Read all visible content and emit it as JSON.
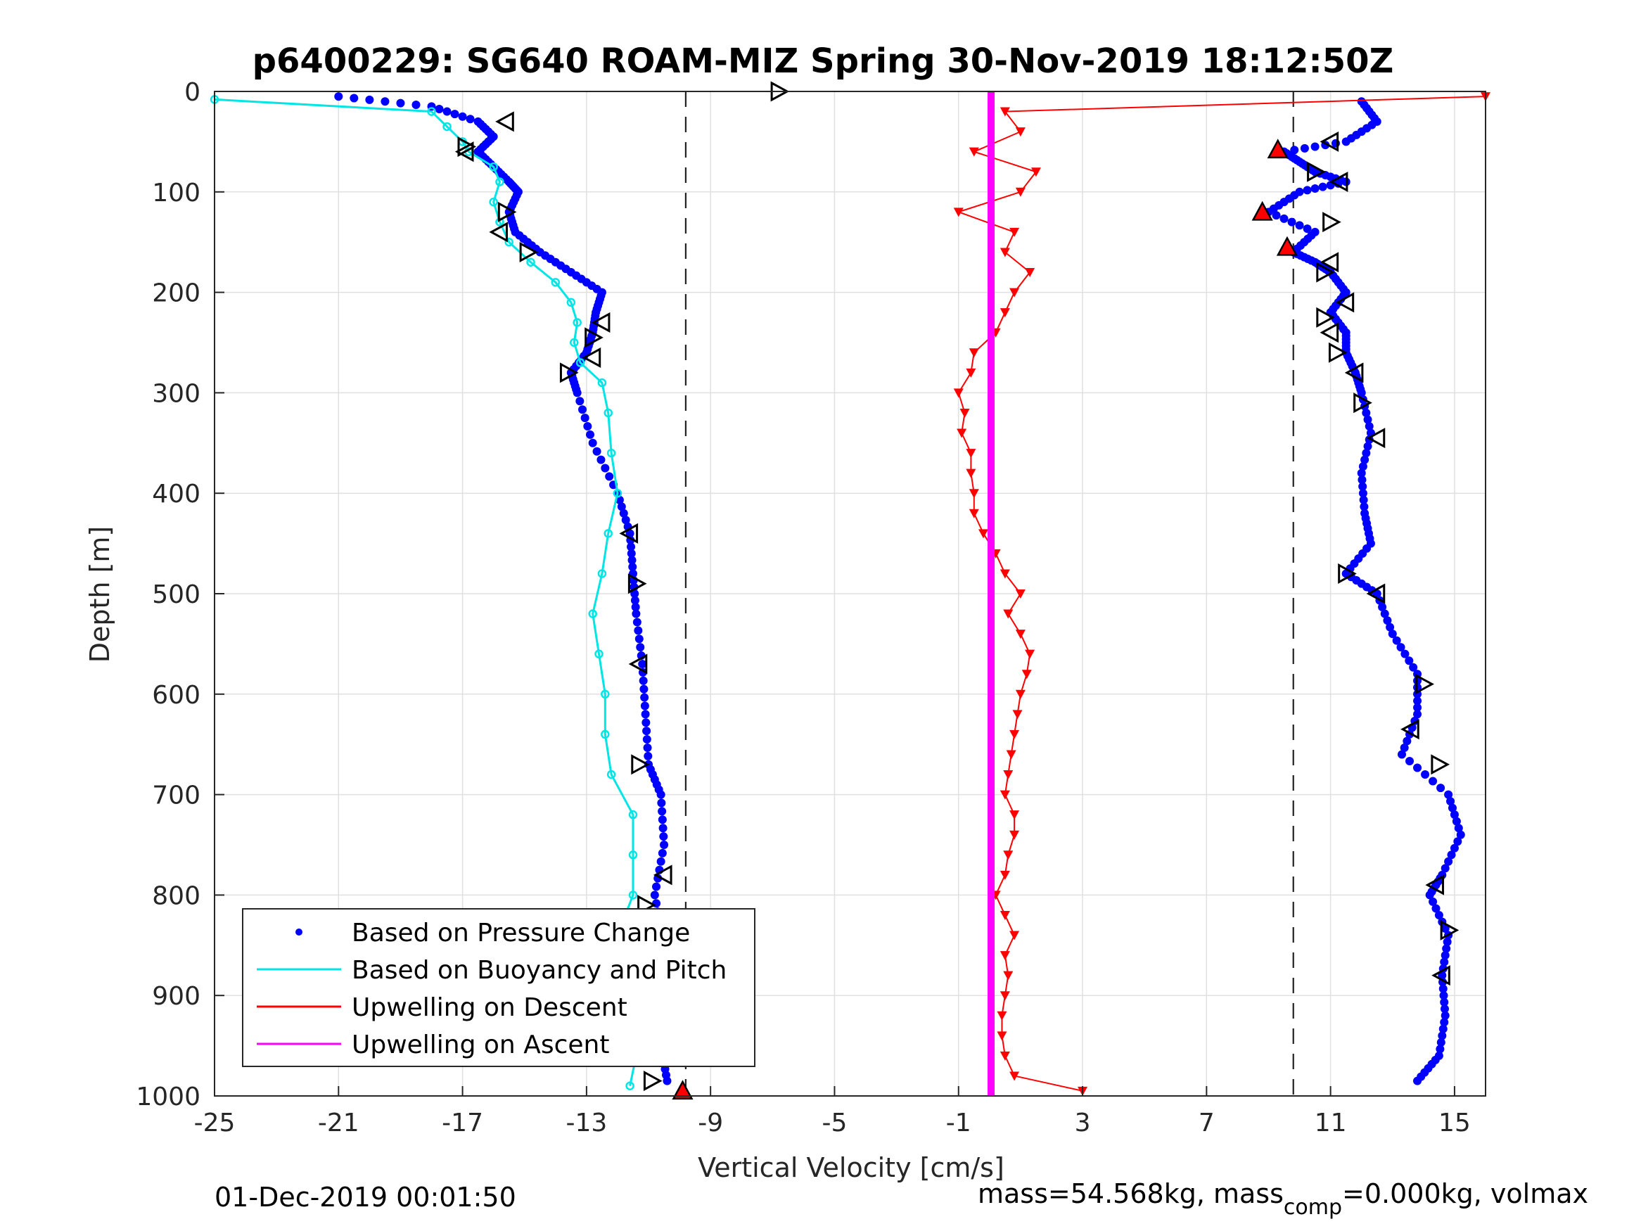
{
  "chart_data": {
    "type": "scatter",
    "title": "p6400229: SG640 ROAM-MIZ Spring 30-Nov-2019 18:12:50Z",
    "xlabel": "Vertical Velocity [cm/s]",
    "ylabel": "Depth [m]",
    "xlim": [
      -25,
      16
    ],
    "ylim": [
      0,
      1000
    ],
    "y_reversed": true,
    "grid": true,
    "x_ticks": [
      -25,
      -21,
      -17,
      -13,
      -9,
      -5,
      -1,
      3,
      7,
      11,
      15
    ],
    "y_ticks": [
      0,
      100,
      200,
      300,
      400,
      500,
      600,
      700,
      800,
      900,
      1000
    ],
    "vertical_reference_lines": [
      -9.8,
      9.8
    ],
    "legend_position": "bottom-left",
    "series": [
      {
        "name": "Based on Pressure Change",
        "color": "#0000ff",
        "style": "dots",
        "profiles": [
          {
            "part": "descent",
            "depth": [
              5,
              15,
              30,
              45,
              60,
              75,
              90,
              100,
              120,
              140,
              160,
              180,
              200,
              220,
              240,
              260,
              280,
              300,
              350,
              400,
              440,
              480,
              520,
              570,
              620,
              670,
              700,
              750,
              800,
              850,
              900,
              950,
              985
            ],
            "velocity": [
              -21,
              -18,
              -16.5,
              -16,
              -16.5,
              -16,
              -15.5,
              -15.2,
              -15.5,
              -15.3,
              -14.5,
              -13.5,
              -12.5,
              -12.7,
              -12.8,
              -13,
              -13.5,
              -13.3,
              -12.8,
              -12,
              -11.6,
              -11.5,
              -11.4,
              -11.2,
              -11.1,
              -11,
              -10.6,
              -10.5,
              -10.8,
              -10.5,
              -10.7,
              -10.6,
              -10.4
            ]
          },
          {
            "part": "ascent",
            "depth": [
              10,
              30,
              50,
              60,
              70,
              80,
              90,
              100,
              120,
              140,
              160,
              170,
              180,
              200,
              220,
              240,
              260,
              280,
              300,
              340,
              380,
              420,
              450,
              480,
              500,
              540,
              580,
              620,
              660,
              700,
              740,
              780,
              800,
              840,
              880,
              920,
              960,
              985
            ],
            "velocity": [
              12,
              12.5,
              11.5,
              9.5,
              10,
              10.5,
              11.5,
              10,
              9,
              10.5,
              9.8,
              10.5,
              11,
              11.5,
              11,
              11.5,
              11.5,
              11.8,
              12,
              12.3,
              12,
              12.1,
              12.3,
              11.5,
              12.5,
              13,
              13.8,
              13.8,
              13.3,
              14.8,
              15.2,
              14.6,
              14.2,
              14.8,
              14.6,
              14.7,
              14.5,
              13.8
            ]
          }
        ]
      },
      {
        "name": "Based on Buoyancy and Pitch",
        "color": "#00e5e5",
        "style": "line-circles",
        "depth": [
          8,
          20,
          35,
          50,
          60,
          75,
          90,
          110,
          130,
          150,
          170,
          190,
          210,
          230,
          250,
          270,
          290,
          320,
          360,
          400,
          440,
          480,
          520,
          560,
          600,
          640,
          680,
          720,
          760,
          800,
          840,
          880,
          920,
          960,
          990
        ],
        "velocity": [
          -25,
          -18,
          -17.5,
          -17,
          -16.8,
          -16,
          -15.8,
          -16,
          -15.8,
          -15.5,
          -14.8,
          -14,
          -13.5,
          -13.3,
          -13.4,
          -13.2,
          -12.5,
          -12.3,
          -12.2,
          -12,
          -12.3,
          -12.5,
          -12.8,
          -12.6,
          -12.4,
          -12.4,
          -12.2,
          -11.5,
          -11.5,
          -11.5,
          -12,
          -11.5,
          -11.4,
          -11.4,
          -11.6
        ]
      },
      {
        "name": "Upwelling on Descent",
        "color": "#ff0000",
        "style": "line-triangles",
        "depth": [
          5,
          20,
          40,
          60,
          80,
          100,
          120,
          140,
          160,
          180,
          200,
          220,
          240,
          260,
          280,
          300,
          320,
          340,
          360,
          380,
          400,
          420,
          440,
          460,
          480,
          500,
          520,
          540,
          560,
          580,
          600,
          620,
          640,
          660,
          680,
          700,
          720,
          740,
          760,
          780,
          800,
          820,
          840,
          860,
          880,
          900,
          920,
          940,
          960,
          980,
          995
        ],
        "velocity": [
          16,
          0.5,
          1,
          -0.5,
          1.5,
          1,
          -1,
          0.8,
          0.5,
          1.3,
          0.8,
          0.5,
          0.2,
          -0.5,
          -0.6,
          -1,
          -0.8,
          -0.9,
          -0.6,
          -0.6,
          -0.5,
          -0.5,
          -0.2,
          0.2,
          0.5,
          1,
          0.6,
          1,
          1.3,
          1.2,
          1,
          0.9,
          0.8,
          0.7,
          0.6,
          0.5,
          0.8,
          0.8,
          0.6,
          0.5,
          0.2,
          0.5,
          0.8,
          0.5,
          0.6,
          0.5,
          0.4,
          0.4,
          0.5,
          0.8,
          3
        ]
      },
      {
        "name": "Upwelling on Ascent",
        "color": "#ff00ff",
        "style": "line",
        "depth": [
          0,
          1000
        ],
        "velocity": [
          0.05,
          0.05
        ]
      },
      {
        "name": "",
        "color": "#000000",
        "style": "open-triangle-markers",
        "depth": [
          0,
          30,
          55,
          60,
          120,
          140,
          160,
          230,
          245,
          265,
          280,
          440,
          490,
          570,
          670,
          780,
          810,
          840,
          985,
          50,
          80,
          90,
          130,
          170,
          180,
          210,
          225,
          240,
          260,
          280,
          310,
          345,
          480,
          500,
          590,
          635,
          670,
          790,
          835,
          880
        ],
        "velocity": [
          -6.8,
          -15.6,
          -16.9,
          -16.9,
          -15.6,
          -15.8,
          -14.9,
          -12.5,
          -12.8,
          -12.8,
          -13.6,
          -11.6,
          -11.4,
          -11.3,
          -11.3,
          -10.5,
          -11.1,
          -11,
          -10.9,
          11,
          10.5,
          11.3,
          11,
          11,
          10.8,
          11.5,
          10.8,
          11,
          11.2,
          11.8,
          12,
          12.5,
          11.5,
          12.5,
          14,
          13.6,
          14.5,
          14.4,
          14.8,
          14.6
        ]
      },
      {
        "name": "",
        "color": "#ff0000",
        "style": "filled-triangle-markers",
        "depth": [
          58,
          120,
          155,
          995
        ],
        "velocity": [
          9.3,
          8.8,
          9.6,
          -9.9
        ]
      }
    ],
    "footer_left": "01-Dec-2019 00:01:50",
    "footer_right_prefix": "mass=54.568kg, mass",
    "footer_right_subscript": "comp",
    "footer_right_suffix": "=0.000kg, volmax"
  }
}
